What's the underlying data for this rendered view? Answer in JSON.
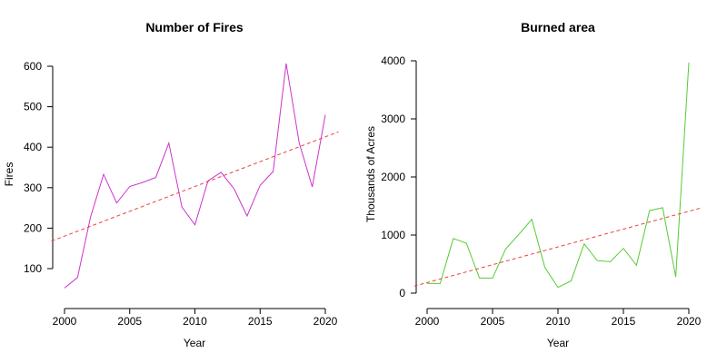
{
  "chart_data": [
    {
      "type": "line",
      "title": "Number of Fires",
      "xlabel": "Year",
      "ylabel": "Fires",
      "xlim": [
        1999.7,
        2021.3
      ],
      "ylim": [
        45,
        615
      ],
      "x_ticks": [
        2000,
        2005,
        2010,
        2015,
        2020
      ],
      "y_ticks": [
        100,
        200,
        300,
        400,
        500,
        600
      ],
      "grid": false,
      "series": [
        {
          "color": "#cc33cc",
          "style": "solid",
          "x": [
            2000,
            2001,
            2002,
            2003,
            2004,
            2005,
            2006,
            2007,
            2008,
            2009,
            2010,
            2011,
            2012,
            2013,
            2014,
            2015,
            2016,
            2017,
            2018,
            2019,
            2020
          ],
          "y": [
            52,
            78,
            228,
            333,
            262,
            303,
            313,
            325,
            410,
            252,
            208,
            317,
            338,
            297,
            230,
            306,
            340,
            607,
            410,
            302,
            480
          ]
        },
        {
          "color": "#e8443a",
          "style": "dashed",
          "x": [
            1999.0,
            2021.0
          ],
          "y": [
            168,
            438
          ]
        }
      ]
    },
    {
      "type": "line",
      "title": "Burned area",
      "xlabel": "Year",
      "ylabel": "Thousands of Acres",
      "xlim": [
        1999.7,
        2021.3
      ],
      "ylim": [
        0,
        4000
      ],
      "x_ticks": [
        2000,
        2005,
        2010,
        2015,
        2020
      ],
      "y_ticks": [
        0,
        1000,
        2000,
        3000,
        4000
      ],
      "grid": false,
      "series": [
        {
          "color": "#55cc33",
          "style": "solid",
          "x": [
            2000,
            2001,
            2002,
            2003,
            2004,
            2005,
            2006,
            2007,
            2008,
            2009,
            2010,
            2011,
            2012,
            2013,
            2014,
            2015,
            2016,
            2017,
            2018,
            2019,
            2020
          ],
          "y": [
            165,
            165,
            940,
            860,
            260,
            260,
            760,
            1010,
            1270,
            440,
            100,
            210,
            850,
            560,
            540,
            770,
            480,
            1420,
            1470,
            280,
            3970
          ]
        },
        {
          "color": "#e8443a",
          "style": "dashed",
          "x": [
            1999.0,
            2021.0
          ],
          "y": [
            120,
            1470
          ]
        }
      ]
    }
  ]
}
